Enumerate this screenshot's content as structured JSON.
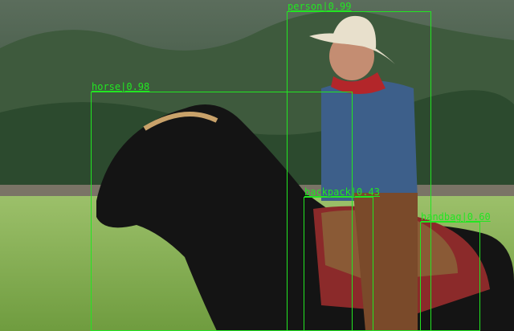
{
  "detections": [
    {
      "label": "person",
      "score": "0.99",
      "text": "person|0.99"
    },
    {
      "label": "horse",
      "score": "0.98",
      "text": "horse|0.98"
    },
    {
      "label": "backpack",
      "score": "0.43",
      "text": "backpack|0.43"
    },
    {
      "label": "handbag",
      "score": "0.60",
      "text": "handbag|0.60"
    }
  ],
  "colors": {
    "box": "#22e622"
  }
}
